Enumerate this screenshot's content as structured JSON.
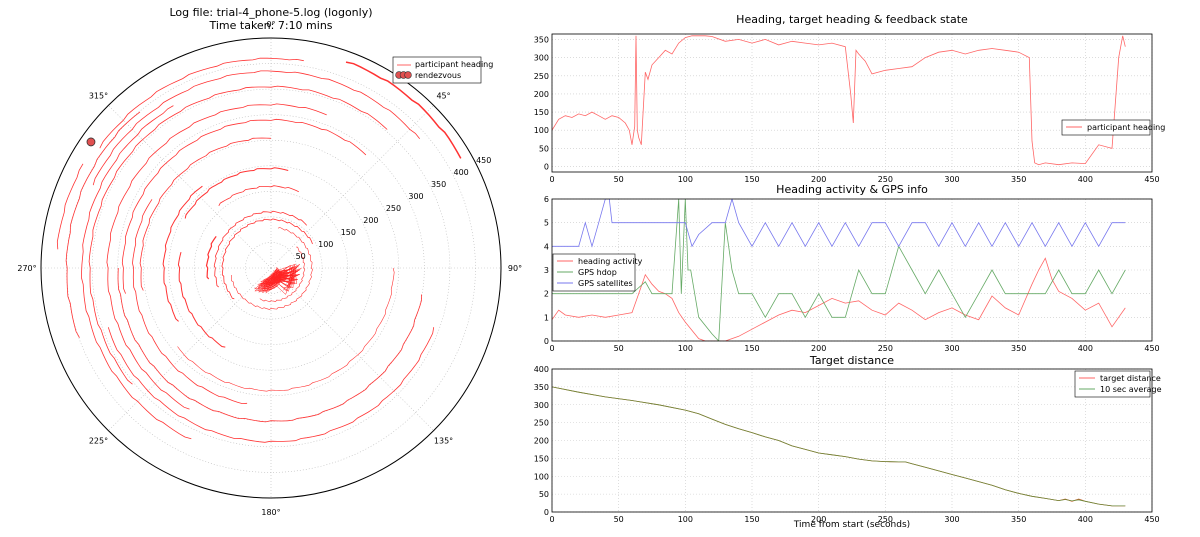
{
  "chart_data": [
    {
      "type": "polar",
      "title_line1": "Log file: trial-4_phone-5.log (logonly)",
      "title_line2": "Time taken: 7:10 mins",
      "angle_labels": [
        {
          "label": "0°",
          "deg": 0
        },
        {
          "label": "45°",
          "deg": 45
        },
        {
          "label": "90°",
          "deg": 90
        },
        {
          "label": "135°",
          "deg": 135
        },
        {
          "label": "180°",
          "deg": 180
        },
        {
          "label": "225°",
          "deg": 225
        },
        {
          "label": "270°",
          "deg": 270
        },
        {
          "label": "315°",
          "deg": 315
        }
      ],
      "radial_ticks": [
        50,
        100,
        150,
        200,
        250,
        300,
        350,
        400,
        450
      ],
      "rmax": 450,
      "legend": [
        {
          "label": "participant heading",
          "color": "#ff6666"
        },
        {
          "label": "rendezvous",
          "color": "#e05050"
        }
      ],
      "rendezvous": {
        "deg": 305,
        "r": 430
      },
      "arcs": [
        {
          "r": 48,
          "a1": 90,
          "a2": 150,
          "w": 0.6
        },
        {
          "r": 65,
          "a1": 50,
          "a2": 200,
          "w": 0.6
        },
        {
          "r": 80,
          "a1": 10,
          "a2": 260,
          "w": 0.6
        },
        {
          "r": 95,
          "a1": 230,
          "a2": 420,
          "w": 0.8
        },
        {
          "r": 110,
          "a1": 250,
          "a2": 400,
          "w": 0.8
        },
        {
          "r": 125,
          "a1": 260,
          "a2": 300,
          "w": 1.2
        },
        {
          "r": 160,
          "a1": 320,
          "a2": 380,
          "w": 0.8
        },
        {
          "r": 180,
          "a1": 210,
          "a2": 280,
          "w": 1.0
        },
        {
          "r": 195,
          "a1": 300,
          "a2": 370,
          "w": 1.0
        },
        {
          "r": 210,
          "a1": 240,
          "a2": 320,
          "w": 1.0
        },
        {
          "r": 240,
          "a1": 90,
          "a2": 230,
          "w": 0.6
        },
        {
          "r": 255,
          "a1": 260,
          "a2": 360,
          "w": 0.8
        },
        {
          "r": 270,
          "a1": 190,
          "a2": 300,
          "w": 0.8
        },
        {
          "r": 290,
          "a1": 260,
          "a2": 400,
          "w": 0.8
        },
        {
          "r": 300,
          "a1": 100,
          "a2": 270,
          "w": 0.8
        },
        {
          "r": 320,
          "a1": 210,
          "a2": 380,
          "w": 0.8
        },
        {
          "r": 340,
          "a1": 110,
          "a2": 250,
          "w": 0.8
        },
        {
          "r": 355,
          "a1": 230,
          "a2": 400,
          "w": 0.8
        },
        {
          "r": 370,
          "a1": 205,
          "a2": 330,
          "w": 0.8
        },
        {
          "r": 385,
          "a1": 295,
          "a2": 410,
          "w": 0.8
        },
        {
          "r": 400,
          "a1": 250,
          "a2": 320,
          "w": 0.8
        },
        {
          "r": 410,
          "a1": 305,
          "a2": 370,
          "w": 0.8
        },
        {
          "r": 420,
          "a1": 275,
          "a2": 300,
          "w": 0.8
        },
        {
          "r": 430,
          "a1": 20,
          "a2": 60,
          "w": 1.5
        }
      ]
    },
    {
      "type": "line",
      "title": "Heading, target heading & feedback state",
      "xlim": [
        0,
        450
      ],
      "ylim": [
        -15,
        365
      ],
      "xticks": [
        0,
        50,
        100,
        150,
        200,
        250,
        300,
        350,
        400,
        450
      ],
      "yticks": [
        0,
        50,
        100,
        150,
        200,
        250,
        300,
        350
      ],
      "legend": [
        {
          "label": "participant heading",
          "color": "#ff6666"
        }
      ],
      "series": [
        {
          "name": "participant heading",
          "color": "#ff6666",
          "x": [
            0,
            5,
            10,
            15,
            20,
            25,
            30,
            35,
            40,
            45,
            50,
            55,
            58,
            60,
            62,
            63,
            64,
            65,
            67,
            70,
            72,
            75,
            80,
            85,
            90,
            95,
            100,
            105,
            110,
            115,
            120,
            130,
            140,
            150,
            160,
            170,
            180,
            190,
            200,
            210,
            220,
            224,
            226,
            228,
            230,
            235,
            240,
            250,
            260,
            270,
            280,
            290,
            300,
            310,
            320,
            330,
            340,
            350,
            358,
            360,
            362,
            365,
            370,
            380,
            390,
            400,
            410,
            420,
            425,
            428,
            430
          ],
          "y": [
            100,
            130,
            140,
            135,
            145,
            140,
            150,
            140,
            130,
            140,
            135,
            120,
            100,
            60,
            110,
            360,
            100,
            80,
            60,
            260,
            240,
            280,
            300,
            320,
            310,
            340,
            355,
            360,
            360,
            360,
            358,
            345,
            350,
            340,
            350,
            335,
            345,
            340,
            335,
            340,
            330,
            200,
            120,
            320,
            310,
            290,
            255,
            265,
            270,
            275,
            300,
            315,
            320,
            310,
            320,
            325,
            320,
            315,
            300,
            70,
            10,
            5,
            10,
            5,
            10,
            8,
            60,
            50,
            300,
            360,
            330
          ]
        }
      ]
    },
    {
      "type": "line",
      "title": "Heading activity & GPS info",
      "xlim": [
        0,
        450
      ],
      "ylim": [
        0,
        6
      ],
      "xticks": [
        0,
        50,
        100,
        150,
        200,
        250,
        300,
        350,
        400,
        450
      ],
      "yticks": [
        0,
        1,
        2,
        3,
        4,
        5,
        6
      ],
      "legend": [
        {
          "label": "heading activity",
          "color": "#ff6666"
        },
        {
          "label": "GPS hdop",
          "color": "#66aa66"
        },
        {
          "label": "GPS satellites",
          "color": "#7777ee"
        }
      ],
      "series": [
        {
          "name": "heading activity",
          "color": "#ff6666",
          "x": [
            0,
            5,
            10,
            20,
            30,
            40,
            50,
            60,
            65,
            70,
            75,
            80,
            85,
            90,
            95,
            100,
            110,
            115,
            120,
            130,
            140,
            150,
            160,
            170,
            180,
            190,
            200,
            210,
            220,
            230,
            240,
            250,
            260,
            270,
            280,
            290,
            300,
            310,
            320,
            330,
            340,
            350,
            360,
            365,
            370,
            375,
            380,
            390,
            400,
            410,
            420,
            430
          ],
          "y": [
            0.9,
            1.3,
            1.1,
            1.0,
            1.1,
            1.0,
            1.1,
            1.2,
            2.0,
            2.8,
            2.4,
            2.1,
            2.0,
            1.8,
            1.2,
            0.8,
            0.1,
            0,
            0,
            0,
            0.2,
            0.5,
            0.8,
            1.1,
            1.3,
            1.2,
            1.5,
            1.8,
            1.6,
            1.7,
            1.3,
            1.1,
            1.6,
            1.3,
            0.9,
            1.2,
            1.4,
            1.1,
            0.9,
            1.9,
            1.4,
            1.1,
            2.4,
            3.0,
            3.5,
            2.6,
            2.1,
            1.8,
            1.3,
            1.6,
            0.6,
            1.4
          ]
        },
        {
          "name": "GPS hdop",
          "color": "#66aa66",
          "x": [
            0,
            20,
            40,
            60,
            70,
            75,
            80,
            85,
            90,
            95,
            97,
            100,
            102,
            104,
            110,
            120,
            125,
            130,
            135,
            140,
            150,
            160,
            170,
            180,
            190,
            200,
            210,
            220,
            230,
            240,
            250,
            260,
            270,
            280,
            290,
            300,
            310,
            320,
            330,
            340,
            350,
            360,
            370,
            380,
            390,
            400,
            410,
            420,
            430
          ],
          "y": [
            2,
            2,
            2,
            2,
            2.5,
            2,
            2,
            2,
            2,
            6,
            2,
            6,
            3,
            3,
            1,
            0.3,
            0,
            5,
            3,
            2,
            2,
            1,
            2,
            2,
            1,
            2,
            1,
            1,
            3,
            2,
            2,
            4,
            3,
            2,
            3,
            2,
            1,
            2,
            3,
            2,
            2,
            2,
            2,
            3,
            2,
            2,
            3,
            2,
            3
          ]
        },
        {
          "name": "GPS satellites",
          "color": "#7777ee",
          "x": [
            0,
            20,
            25,
            30,
            35,
            40,
            43,
            45,
            100,
            105,
            110,
            120,
            130,
            135,
            140,
            150,
            160,
            170,
            180,
            190,
            200,
            210,
            220,
            230,
            240,
            250,
            260,
            270,
            280,
            290,
            300,
            310,
            320,
            330,
            340,
            350,
            360,
            370,
            380,
            390,
            400,
            410,
            420,
            430
          ],
          "y": [
            4,
            4,
            5,
            4,
            5,
            6,
            6,
            5,
            5,
            4,
            4.5,
            5,
            5,
            6,
            5,
            4,
            5,
            4,
            5,
            4,
            5,
            4,
            5,
            4,
            5,
            5,
            4,
            5,
            5,
            4,
            5,
            4,
            5,
            4,
            5,
            4,
            5,
            4,
            5,
            4,
            5,
            4,
            5,
            5
          ]
        }
      ]
    },
    {
      "type": "line",
      "title": "Target distance",
      "xlabel": "Time from start (seconds)",
      "xlim": [
        0,
        450
      ],
      "ylim": [
        0,
        400
      ],
      "xticks": [
        0,
        50,
        100,
        150,
        200,
        250,
        300,
        350,
        400,
        450
      ],
      "yticks": [
        0,
        50,
        100,
        150,
        200,
        250,
        300,
        350,
        400
      ],
      "legend": [
        {
          "label": "target distance",
          "color": "#ff6666"
        },
        {
          "label": "10 sec average",
          "color": "#66aa66"
        }
      ],
      "series": [
        {
          "name": "target distance",
          "color": "#d25a2a",
          "x": [
            0,
            20,
            40,
            60,
            80,
            100,
            110,
            120,
            130,
            140,
            150,
            160,
            170,
            180,
            190,
            200,
            210,
            220,
            230,
            240,
            250,
            260,
            265,
            270,
            280,
            290,
            300,
            310,
            320,
            330,
            340,
            350,
            360,
            370,
            380,
            385,
            390,
            395,
            400,
            410,
            420,
            430
          ],
          "y": [
            350,
            335,
            322,
            312,
            300,
            285,
            275,
            260,
            245,
            233,
            222,
            210,
            200,
            185,
            175,
            165,
            160,
            155,
            148,
            143,
            141,
            140,
            140,
            135,
            125,
            115,
            105,
            95,
            85,
            75,
            62,
            52,
            44,
            38,
            32,
            36,
            30,
            36,
            30,
            22,
            17,
            17
          ]
        },
        {
          "name": "10 sec average",
          "color": "#6b8a3c",
          "x": [
            0,
            20,
            40,
            60,
            80,
            100,
            110,
            120,
            130,
            140,
            150,
            160,
            170,
            180,
            190,
            200,
            210,
            220,
            230,
            240,
            250,
            260,
            265,
            270,
            280,
            290,
            300,
            310,
            320,
            330,
            340,
            350,
            360,
            370,
            380,
            385,
            390,
            395,
            400,
            410,
            420,
            430
          ],
          "y": [
            350,
            335,
            322,
            312,
            300,
            285,
            275,
            260,
            245,
            233,
            222,
            210,
            200,
            185,
            175,
            165,
            160,
            155,
            148,
            143,
            141,
            140,
            140,
            135,
            125,
            115,
            105,
            95,
            85,
            75,
            62,
            52,
            44,
            38,
            32,
            35,
            31,
            34,
            30,
            22,
            17,
            17
          ]
        }
      ]
    }
  ]
}
